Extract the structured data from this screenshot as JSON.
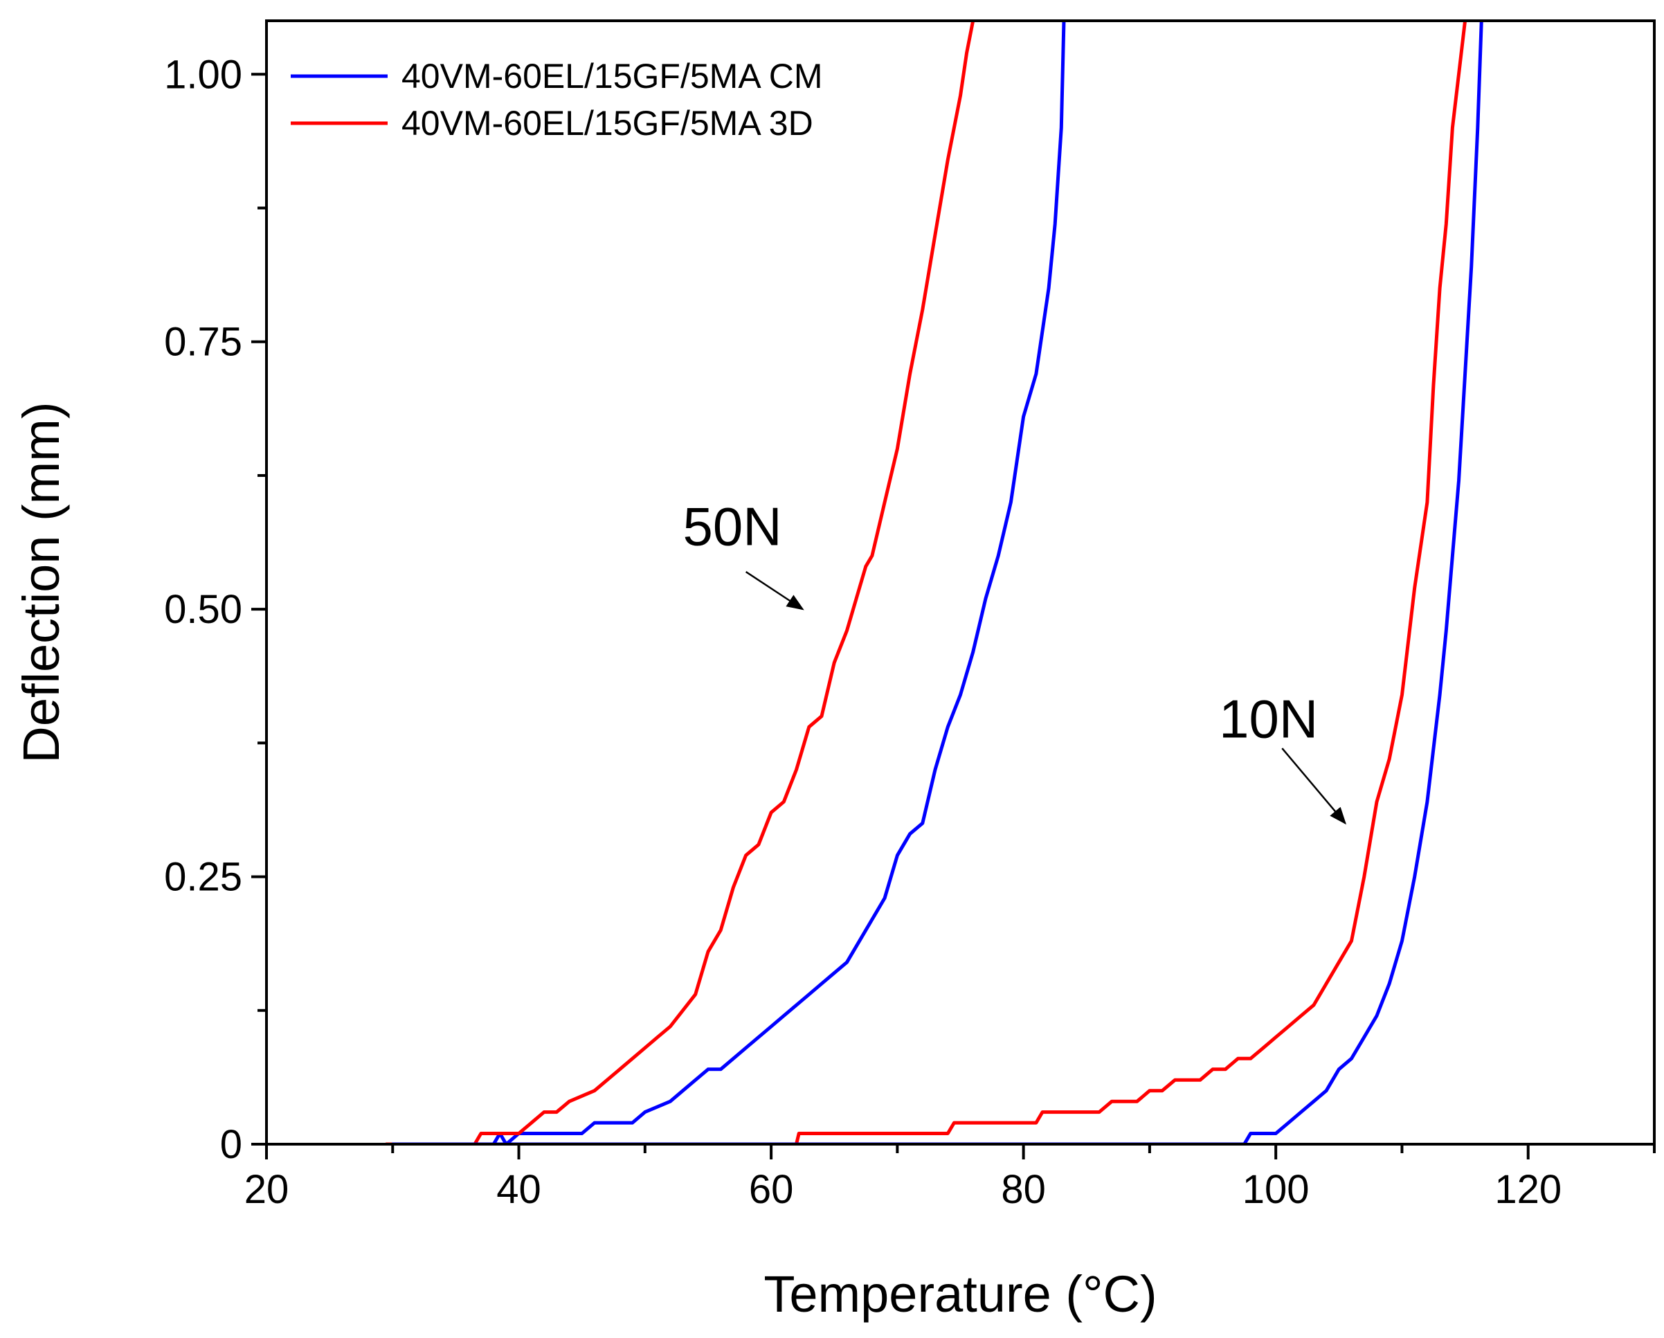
{
  "chart_data": {
    "type": "line",
    "title": "",
    "xlabel": "Temperature (°C)",
    "ylabel": "Deflection (mm)",
    "xlim": [
      20,
      130
    ],
    "ylim": [
      0,
      1.05
    ],
    "x_ticks": [
      20,
      40,
      60,
      80,
      100,
      120
    ],
    "x_tick_labels": [
      "20",
      "40",
      "60",
      "80",
      "100",
      "120"
    ],
    "y_ticks": [
      0,
      0.25,
      0.5,
      0.75,
      1.0
    ],
    "y_tick_labels": [
      "0",
      "0.25",
      "0.50",
      "0.75",
      "1.00"
    ],
    "legend": {
      "position": "top-left",
      "entries": [
        "40VM-60EL/15GF/5MA CM",
        "40VM-60EL/15GF/5MA 3D"
      ]
    },
    "series": [
      {
        "name": "40VM-60EL/15GF/5MA CM",
        "load": "50N",
        "color": "#0000ff",
        "x": [
          38,
          38.5,
          39,
          40,
          42,
          45,
          46,
          49,
          50,
          52,
          53,
          55,
          56,
          58,
          59,
          60,
          61,
          62,
          63,
          64,
          65,
          66,
          67,
          68,
          69,
          70,
          71,
          72,
          73,
          74,
          75,
          76,
          77,
          78,
          79,
          80,
          81,
          81.5,
          82,
          82.5,
          83,
          83.2
        ],
        "y": [
          0,
          0.01,
          0,
          0.01,
          0.01,
          0.01,
          0.02,
          0.02,
          0.03,
          0.04,
          0.05,
          0.07,
          0.07,
          0.09,
          0.1,
          0.11,
          0.12,
          0.13,
          0.14,
          0.15,
          0.16,
          0.17,
          0.19,
          0.21,
          0.23,
          0.27,
          0.29,
          0.3,
          0.35,
          0.39,
          0.42,
          0.46,
          0.51,
          0.55,
          0.6,
          0.68,
          0.72,
          0.76,
          0.8,
          0.86,
          0.95,
          1.05
        ]
      },
      {
        "name": "40VM-60EL/15GF/5MA 3D",
        "load": "50N",
        "color": "#ff0000",
        "x": [
          29.5,
          36.5,
          37,
          40,
          41,
          42,
          43,
          44,
          46,
          48,
          50,
          51,
          52,
          54,
          55,
          56,
          57,
          58,
          59,
          60,
          61,
          62,
          63,
          64,
          65,
          66,
          67,
          67.5,
          68,
          69,
          70,
          71,
          72,
          73,
          74,
          75,
          75.5,
          76
        ],
        "y": [
          0,
          0,
          0.01,
          0.01,
          0.02,
          0.03,
          0.03,
          0.04,
          0.05,
          0.07,
          0.09,
          0.1,
          0.11,
          0.14,
          0.18,
          0.2,
          0.24,
          0.27,
          0.28,
          0.31,
          0.32,
          0.35,
          0.39,
          0.4,
          0.45,
          0.48,
          0.52,
          0.54,
          0.55,
          0.6,
          0.65,
          0.72,
          0.78,
          0.85,
          0.92,
          0.98,
          1.02,
          1.05
        ]
      },
      {
        "name": "40VM-60EL/15GF/5MA 3D",
        "load": "10N",
        "color": "#ff0000",
        "x": [
          62,
          62.2,
          74,
          74.5,
          81,
          81.5,
          86,
          87,
          89,
          90,
          91,
          92,
          94,
          95,
          96,
          97,
          98,
          99,
          100,
          101,
          102,
          103,
          104,
          105,
          106,
          107,
          108,
          109,
          110,
          111,
          112,
          112.5,
          113,
          113.5,
          114,
          115
        ],
        "y": [
          0,
          0.01,
          0.01,
          0.02,
          0.02,
          0.03,
          0.03,
          0.04,
          0.04,
          0.05,
          0.05,
          0.06,
          0.06,
          0.07,
          0.07,
          0.08,
          0.08,
          0.09,
          0.1,
          0.11,
          0.12,
          0.13,
          0.15,
          0.17,
          0.19,
          0.25,
          0.32,
          0.36,
          0.42,
          0.52,
          0.6,
          0.71,
          0.8,
          0.86,
          0.95,
          1.05
        ]
      },
      {
        "name": "40VM-60EL/15GF/5MA CM",
        "load": "10N",
        "color": "#0000ff",
        "x": [
          30,
          97.5,
          98,
          100,
          101,
          102,
          103,
          104,
          105,
          106,
          107,
          108,
          109,
          110,
          111,
          112,
          113,
          113.5,
          114,
          114.5,
          115,
          115.5,
          116,
          116.3
        ],
        "y": [
          0,
          0,
          0.01,
          0.01,
          0.02,
          0.03,
          0.04,
          0.05,
          0.07,
          0.08,
          0.1,
          0.12,
          0.15,
          0.19,
          0.25,
          0.32,
          0.42,
          0.48,
          0.55,
          0.62,
          0.72,
          0.82,
          0.95,
          1.05
        ]
      }
    ],
    "annotations": [
      {
        "text": "50N",
        "label_at": [
          53,
          0.56
        ],
        "arrow_from": [
          58,
          0.535
        ],
        "arrow_to": [
          62.5,
          0.5
        ]
      },
      {
        "text": "10N",
        "label_at": [
          95.5,
          0.38
        ],
        "arrow_from": [
          100.5,
          0.37
        ],
        "arrow_to": [
          105.5,
          0.3
        ]
      }
    ]
  }
}
